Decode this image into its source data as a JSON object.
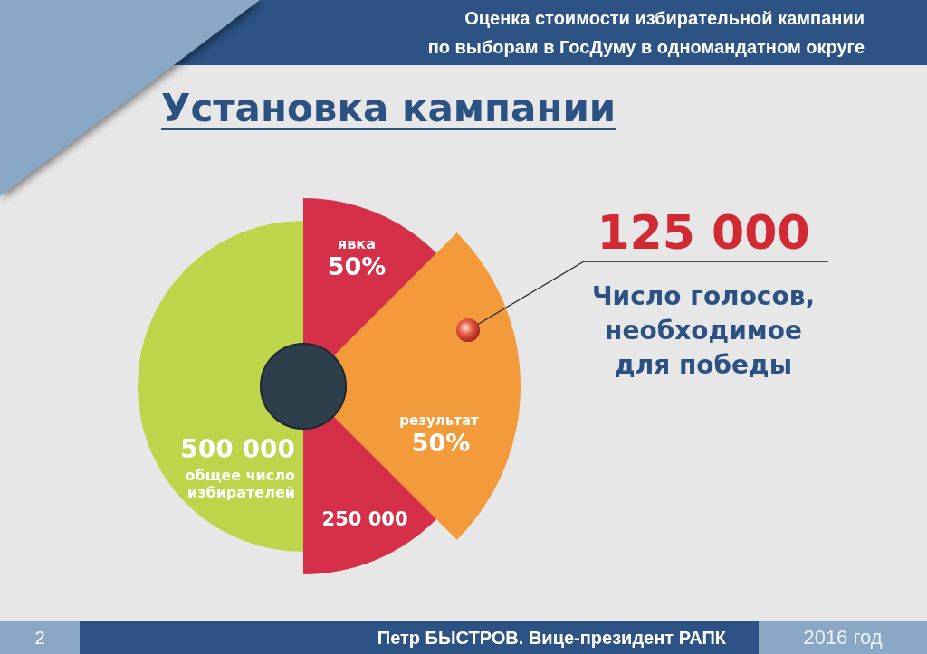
{
  "chart_data": {
    "type": "other",
    "title": "Установка кампании",
    "subtitle": "Оценка стоимости избирательной кампании\nпо выборам в ГосДуму в одномандатном округе",
    "categories": [
      "общее число избирателей",
      "явка",
      "результат"
    ],
    "values": [
      500000,
      250000,
      125000
    ],
    "value_labels": [
      "500 000",
      "250 000",
      "125 000"
    ],
    "colors": [
      "#bdd54b",
      "#d52f4a",
      "#f39a3b"
    ],
    "annotations": [
      {
        "text": "50%",
        "x": "явка"
      },
      {
        "text": "50%",
        "x": "результат"
      },
      {
        "text": "Число голосов, необходимое для победы",
        "x": "результат"
      },
      "2",
      "Петр БЫСТРОВ. Вице-президент РАПК",
      "2016 год"
    ]
  }
}
